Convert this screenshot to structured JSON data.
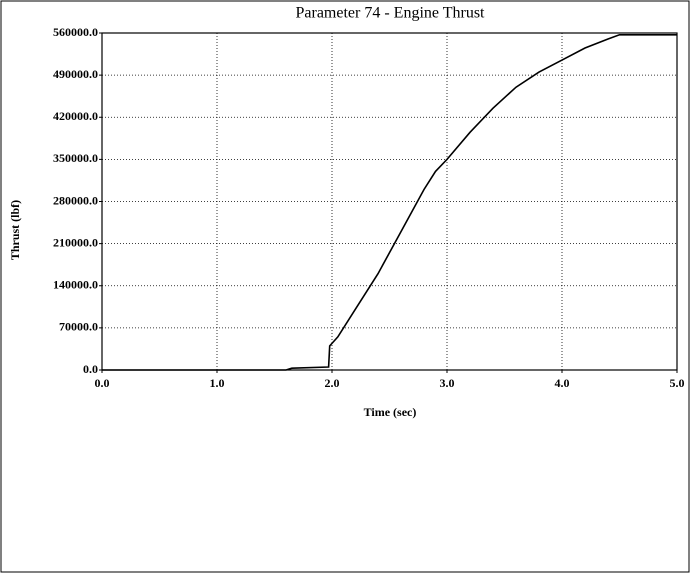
{
  "chart_data": {
    "type": "line",
    "title": "Parameter 74 - Engine Thrust",
    "x_label": "Time (sec)",
    "y_label": "Thrust (lbf)",
    "x": [
      0,
      1.6,
      1.65,
      1.97,
      1.98,
      2.05,
      2.2,
      2.4,
      2.6,
      2.8,
      2.9,
      3.0,
      3.2,
      3.4,
      3.6,
      3.8,
      4.0,
      4.2,
      4.4,
      4.5,
      5.0
    ],
    "series": [
      {
        "name": "Engine Thrust",
        "color": "#000000",
        "values": [
          0,
          0,
          3000,
          5000,
          40000,
          55000,
          100000,
          160000,
          230000,
          300000,
          330000,
          350000,
          395000,
          435000,
          470000,
          495000,
          515000,
          535000,
          550000,
          557000,
          557000
        ]
      }
    ],
    "xlim": [
      0,
      5
    ],
    "ylim": [
      0,
      560000
    ],
    "xticks": [
      {
        "value": 0,
        "label": "0.0"
      },
      {
        "value": 1,
        "label": "1.0"
      },
      {
        "value": 2,
        "label": "2.0"
      },
      {
        "value": 3,
        "label": "3.0"
      },
      {
        "value": 4,
        "label": "4.0"
      },
      {
        "value": 5,
        "label": "5.0"
      }
    ],
    "yticks": [
      {
        "value": 0,
        "label": "0.0"
      },
      {
        "value": 70000,
        "label": "70000.0"
      },
      {
        "value": 140000,
        "label": "140000.0"
      },
      {
        "value": 210000,
        "label": "210000.0"
      },
      {
        "value": 280000,
        "label": "280000.0"
      },
      {
        "value": 350000,
        "label": "350000.0"
      },
      {
        "value": 420000,
        "label": "420000.0"
      },
      {
        "value": 490000,
        "label": "490000.0"
      },
      {
        "value": 560000,
        "label": "560000.0"
      }
    ],
    "grid": true
  }
}
